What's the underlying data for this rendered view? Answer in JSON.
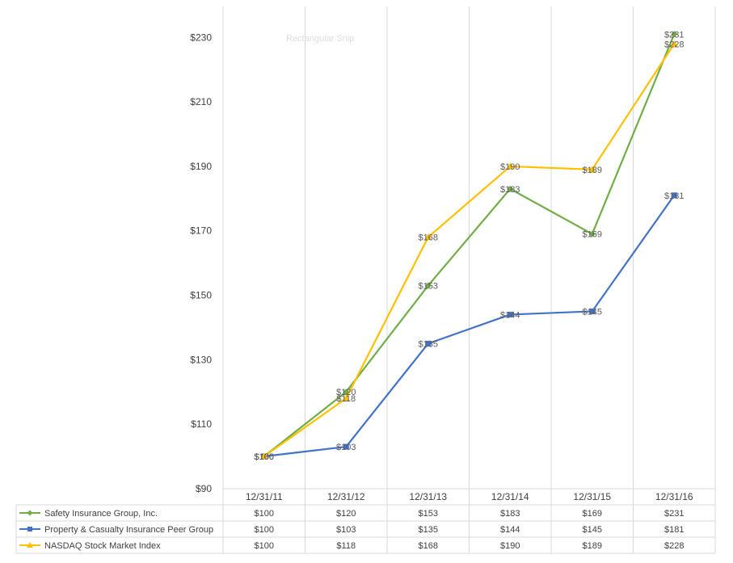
{
  "snip_label": "Rectangular Snip",
  "chart_data": {
    "type": "line",
    "categories": [
      "12/31/11",
      "12/31/12",
      "12/31/13",
      "12/31/14",
      "12/31/15",
      "12/31/16"
    ],
    "ylim": [
      90,
      240
    ],
    "y_ticks": [
      90,
      110,
      130,
      150,
      170,
      190,
      210,
      230
    ],
    "y_tick_labels": [
      "$90",
      "$110",
      "$130",
      "$150",
      "$170",
      "$190",
      "$210",
      "$230"
    ],
    "grid": "vertical",
    "legend": "data-table",
    "series": [
      {
        "name": "Safety Insurance Group, Inc.",
        "color": "#70ad47",
        "marker": "diamond",
        "values": [
          100,
          120,
          153,
          183,
          169,
          231
        ],
        "labels": [
          "$100",
          "$120",
          "$153",
          "$183",
          "$169",
          "$231"
        ]
      },
      {
        "name": "Property & Casualty Insurance Peer Group",
        "color": "#4472c4",
        "marker": "square",
        "values": [
          100,
          103,
          135,
          144,
          145,
          181
        ],
        "labels": [
          "$100",
          "$103",
          "$135",
          "$144",
          "$145",
          "$181"
        ]
      },
      {
        "name": "NASDAQ Stock Market Index",
        "color": "#ffc000",
        "marker": "triangle",
        "values": [
          100,
          118,
          168,
          190,
          189,
          228
        ],
        "labels": [
          "$100",
          "$118",
          "$168",
          "$190",
          "$189",
          "$228"
        ]
      }
    ]
  }
}
